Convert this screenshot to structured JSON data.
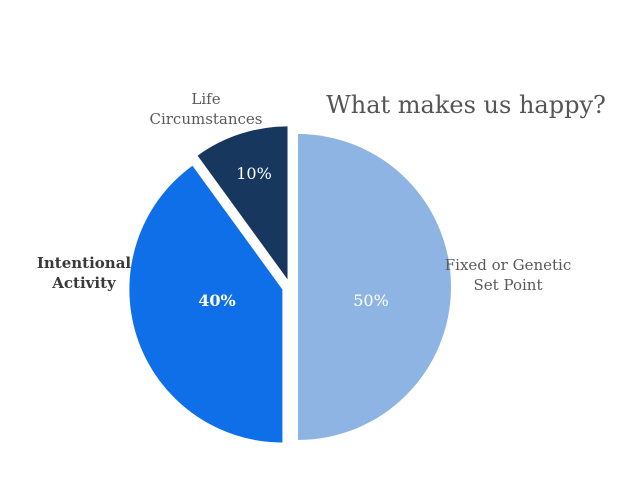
{
  "chart_data": {
    "type": "pie",
    "title": "What makes us happy?",
    "slices": [
      {
        "label": [
          "Fixed or Genetic",
          "Set Point"
        ],
        "value": 50,
        "value_label": "50%",
        "color": "#8eb4e3",
        "exploded": true
      },
      {
        "label": [
          "Intentional",
          "Activity"
        ],
        "value": 40,
        "value_label": "40%",
        "color": "#0f6fe8",
        "exploded": true,
        "label_bold": true
      },
      {
        "label": [
          "Life",
          "Circumstances"
        ],
        "value": 10,
        "value_label": "10%",
        "color": "#17375e",
        "exploded": true
      }
    ],
    "start": "12 o'clock",
    "direction": "clockwise",
    "legend": "none"
  }
}
